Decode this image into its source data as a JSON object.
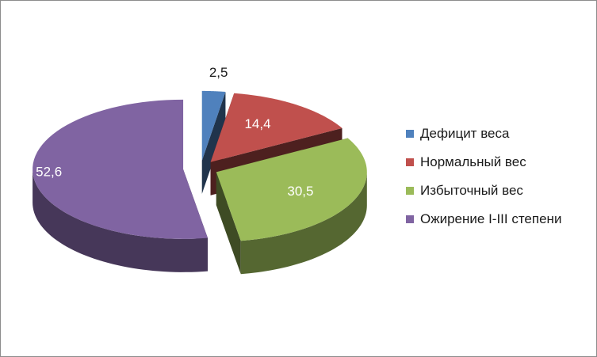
{
  "chart_data": {
    "type": "pie",
    "style": "3d-exploded",
    "categories": [
      "Дефицит веса",
      "Нормальный вес",
      "Избыточный вес",
      "Ожирение I-III степени"
    ],
    "values": [
      2.5,
      14.4,
      30.5,
      52.6
    ],
    "labels": [
      "2,5",
      "14,4",
      "30,5",
      "52,6"
    ],
    "colors": [
      "#4f81bd",
      "#c0504d",
      "#9bbb59",
      "#8064a2"
    ],
    "legend_position": "right"
  }
}
